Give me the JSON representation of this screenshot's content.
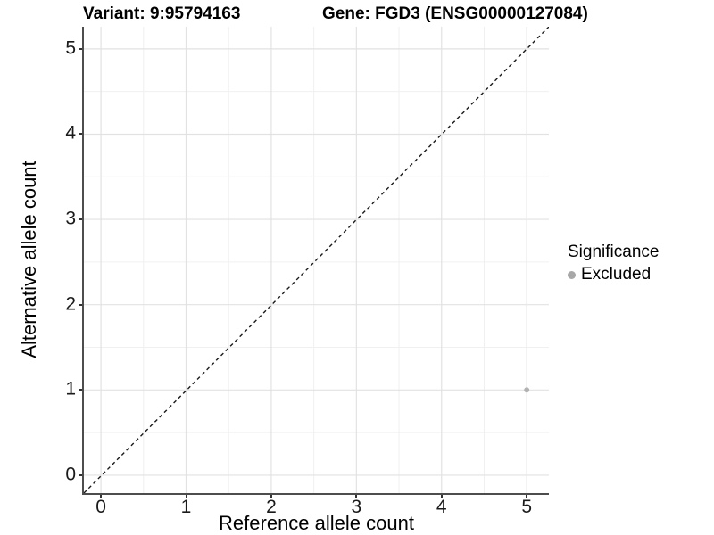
{
  "header": {
    "variant_title": "Variant: 9:95794163",
    "gene_title": "Gene: FGD3 (ENSG00000127084)"
  },
  "chart_data": {
    "type": "scatter",
    "xlabel": "Reference allele count",
    "ylabel": "Alternative allele count",
    "x_ticks": [
      0,
      1,
      2,
      3,
      4,
      5
    ],
    "y_ticks": [
      0,
      1,
      2,
      3,
      4,
      5
    ],
    "x_minor_ticks": [
      0.5,
      1.5,
      2.5,
      3.5,
      4.5
    ],
    "y_minor_ticks": [
      0.5,
      1.5,
      2.5,
      3.5,
      4.5
    ],
    "xlim": [
      -0.2,
      5.26
    ],
    "ylim": [
      -0.21,
      5.26
    ],
    "grid": {
      "major": true,
      "minor": true
    },
    "identity_line": {
      "style": "dashed",
      "slope": 1,
      "intercept": 0,
      "from": [
        -0.2,
        -0.21
      ],
      "to": [
        5.26,
        5.26
      ]
    },
    "series": [
      {
        "name": "Excluded",
        "marker": "circle",
        "color": "#b2b2b2",
        "points": [
          {
            "x": 5,
            "y": 1
          }
        ]
      }
    ],
    "legend": {
      "title": "Significance",
      "position": "right",
      "entries": [
        {
          "label": "Excluded",
          "color": "#a8a8a8"
        }
      ]
    }
  },
  "colors": {
    "background": "#ffffff",
    "grid_major": "#e2e2e2",
    "grid_minor": "#f0f0f0",
    "axis_line": "#4d4d4d",
    "tick_mark": "#333333",
    "tick_text": "#1a1a1a",
    "title_text": "#000000",
    "dashed_line": "#1a1a1a",
    "point": "#b2b2b2"
  }
}
